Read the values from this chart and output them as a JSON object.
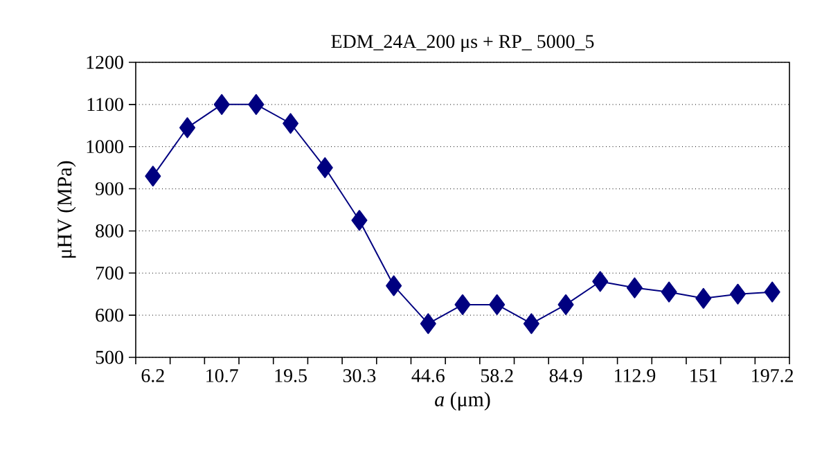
{
  "chart_data": {
    "type": "line",
    "title": "EDM_24A_200 μs + RP_ 5000_5",
    "xlabel": "*a* (μm)",
    "ylabel": "μHV (MPa)",
    "categories": [
      "6.2",
      null,
      "10.7",
      null,
      "19.5",
      null,
      "30.3",
      null,
      "44.6",
      null,
      "58.2",
      null,
      "84.9",
      null,
      "112.9",
      null,
      "151",
      null,
      "197.2"
    ],
    "series": [
      {
        "color": "#000080",
        "values": [
          930,
          1045,
          1100,
          1100,
          1055,
          950,
          825,
          670,
          580,
          625,
          625,
          580,
          625,
          680,
          665,
          655,
          640,
          650,
          655
        ]
      }
    ],
    "ylim": [
      500,
      1200
    ],
    "yticks": [
      500,
      600,
      700,
      800,
      900,
      1000,
      1100,
      1200
    ],
    "grid": "y",
    "marker": "diamond",
    "line_style": "solid"
  }
}
